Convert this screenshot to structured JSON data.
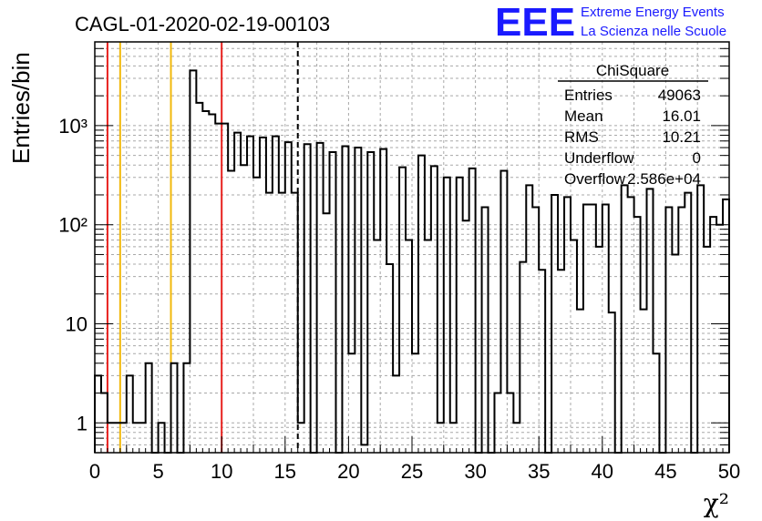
{
  "chart_data": {
    "type": "histogram",
    "title": "CAGL-01-2020-02-19-00103",
    "xlabel": "χ²",
    "ylabel": "Entries/bin",
    "xlim": [
      0,
      50
    ],
    "ylim": [
      0.5,
      7000
    ],
    "yscale": "log",
    "grid": true,
    "bin_width": 0.5,
    "x_ticks": [
      "0",
      "5",
      "10",
      "15",
      "20",
      "25",
      "30",
      "35",
      "40",
      "45",
      "50"
    ],
    "y_ticks": [
      {
        "value": 1,
        "label": "1"
      },
      {
        "value": 10,
        "label": "10"
      },
      {
        "value": 100,
        "label": "10²"
      },
      {
        "value": 1000,
        "label": "10³"
      }
    ],
    "bins": [
      [
        0,
        3
      ],
      [
        0.5,
        2
      ],
      [
        1,
        1
      ],
      [
        1.5,
        1
      ],
      [
        2,
        1
      ],
      [
        2.5,
        3
      ],
      [
        3,
        1
      ],
      [
        3.5,
        1
      ],
      [
        4,
        4
      ],
      [
        4.5,
        0
      ],
      [
        5,
        1
      ],
      [
        5.5,
        0
      ],
      [
        6,
        4
      ],
      [
        6.5,
        0
      ],
      [
        7,
        4
      ],
      [
        7.5,
        3600
      ],
      [
        8,
        1700
      ],
      [
        8.5,
        1400
      ],
      [
        9,
        1300
      ],
      [
        9.5,
        1050
      ],
      [
        10,
        1050
      ],
      [
        10.5,
        350
      ],
      [
        11,
        850
      ],
      [
        11.5,
        400
      ],
      [
        12,
        780
      ],
      [
        12.5,
        300
      ],
      [
        13,
        760
      ],
      [
        13.5,
        210
      ],
      [
        14,
        780
      ],
      [
        14.5,
        210
      ],
      [
        15,
        680
      ],
      [
        15.5,
        210
      ],
      [
        16,
        1
      ],
      [
        16.5,
        650
      ],
      [
        17,
        0
      ],
      [
        17.5,
        670
      ],
      [
        18,
        130
      ],
      [
        18.5,
        540
      ],
      [
        19,
        0
      ],
      [
        19.5,
        620
      ],
      [
        20,
        5
      ],
      [
        20.5,
        600
      ],
      [
        21,
        0.6
      ],
      [
        21.5,
        540
      ],
      [
        22,
        70
      ],
      [
        22.5,
        580
      ],
      [
        23,
        40
      ],
      [
        23.5,
        3
      ],
      [
        24,
        380
      ],
      [
        24.5,
        70
      ],
      [
        25,
        5
      ],
      [
        25.5,
        500
      ],
      [
        26,
        70
      ],
      [
        26.5,
        390
      ],
      [
        27,
        1
      ],
      [
        27.5,
        300
      ],
      [
        28,
        1
      ],
      [
        28.5,
        300
      ],
      [
        29,
        110
      ],
      [
        29.5,
        370
      ],
      [
        30,
        0
      ],
      [
        30.5,
        150
      ],
      [
        31,
        0
      ],
      [
        31.5,
        2
      ],
      [
        32,
        350
      ],
      [
        32.5,
        2
      ],
      [
        33,
        1
      ],
      [
        33.5,
        42
      ],
      [
        34,
        250
      ],
      [
        34.5,
        150
      ],
      [
        35,
        35
      ],
      [
        35.5,
        0
      ],
      [
        36,
        200
      ],
      [
        36.5,
        35
      ],
      [
        37,
        190
      ],
      [
        37.5,
        70
      ],
      [
        38,
        14
      ],
      [
        38.5,
        160
      ],
      [
        39,
        160
      ],
      [
        39.5,
        60
      ],
      [
        40,
        160
      ],
      [
        40.5,
        13
      ],
      [
        41,
        0.5
      ],
      [
        41.5,
        250
      ],
      [
        42,
        190
      ],
      [
        42.5,
        120
      ],
      [
        43,
        14
      ],
      [
        43.5,
        230
      ],
      [
        44,
        5
      ],
      [
        44.5,
        0
      ],
      [
        45,
        150
      ],
      [
        45.5,
        50
      ],
      [
        46,
        150
      ],
      [
        46.5,
        210
      ],
      [
        47,
        0.5
      ],
      [
        47.5,
        250
      ],
      [
        48,
        60
      ],
      [
        48.5,
        120
      ],
      [
        49,
        100
      ],
      [
        49.5,
        180
      ]
    ],
    "vlines": [
      {
        "x": 1,
        "color": "#e8211e",
        "style": "solid"
      },
      {
        "x": 2,
        "color": "#f2b90c",
        "style": "solid"
      },
      {
        "x": 6,
        "color": "#f2b90c",
        "style": "solid"
      },
      {
        "x": 10,
        "color": "#e8211e",
        "style": "solid"
      },
      {
        "x": 16,
        "color": "#000000",
        "style": "dashed"
      }
    ],
    "stats": {
      "name": "ChiSquare",
      "rows": [
        {
          "label": "Entries",
          "value": "49063"
        },
        {
          "label": "Mean",
          "value": "16.01"
        },
        {
          "label": "RMS",
          "value": "10.21"
        },
        {
          "label": "Underflow",
          "value": "0"
        },
        {
          "label": "Overflow",
          "value": "2.586e+04"
        }
      ]
    }
  },
  "logo": {
    "mark": "EEE",
    "line1": "Extreme Energy Events",
    "line2": "La Scienza nelle Scuole",
    "color": "#1a1aff"
  }
}
